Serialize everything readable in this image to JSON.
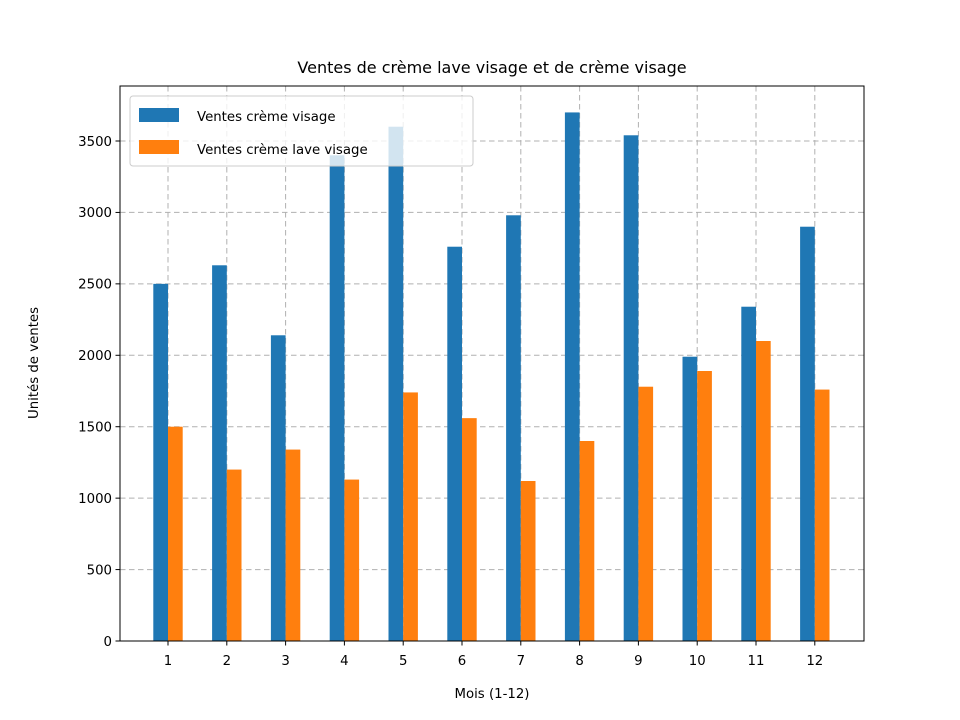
{
  "chart_data": {
    "type": "bar",
    "title": "Ventes de crème lave visage et de crème visage",
    "xlabel": "Mois (1-12)",
    "ylabel": "Unités de ventes",
    "categories": [
      "1",
      "2",
      "3",
      "4",
      "5",
      "6",
      "7",
      "8",
      "9",
      "10",
      "11",
      "12"
    ],
    "series": [
      {
        "name": "Ventes crème visage",
        "color": "#1f77b4",
        "values": [
          2500,
          2630,
          2140,
          3400,
          3600,
          2760,
          2980,
          3700,
          3540,
          1990,
          2340,
          2900
        ]
      },
      {
        "name": "Ventes crème lave visage",
        "color": "#ff7f0e",
        "values": [
          1500,
          1200,
          1340,
          1130,
          1740,
          1560,
          1120,
          1400,
          1780,
          1890,
          2100,
          1760
        ]
      }
    ],
    "ylim": [
      0,
      3885
    ],
    "yticks": [
      0,
      500,
      1000,
      1500,
      2000,
      2500,
      3000,
      3500
    ],
    "grid": true,
    "legend_position": "top-left"
  }
}
